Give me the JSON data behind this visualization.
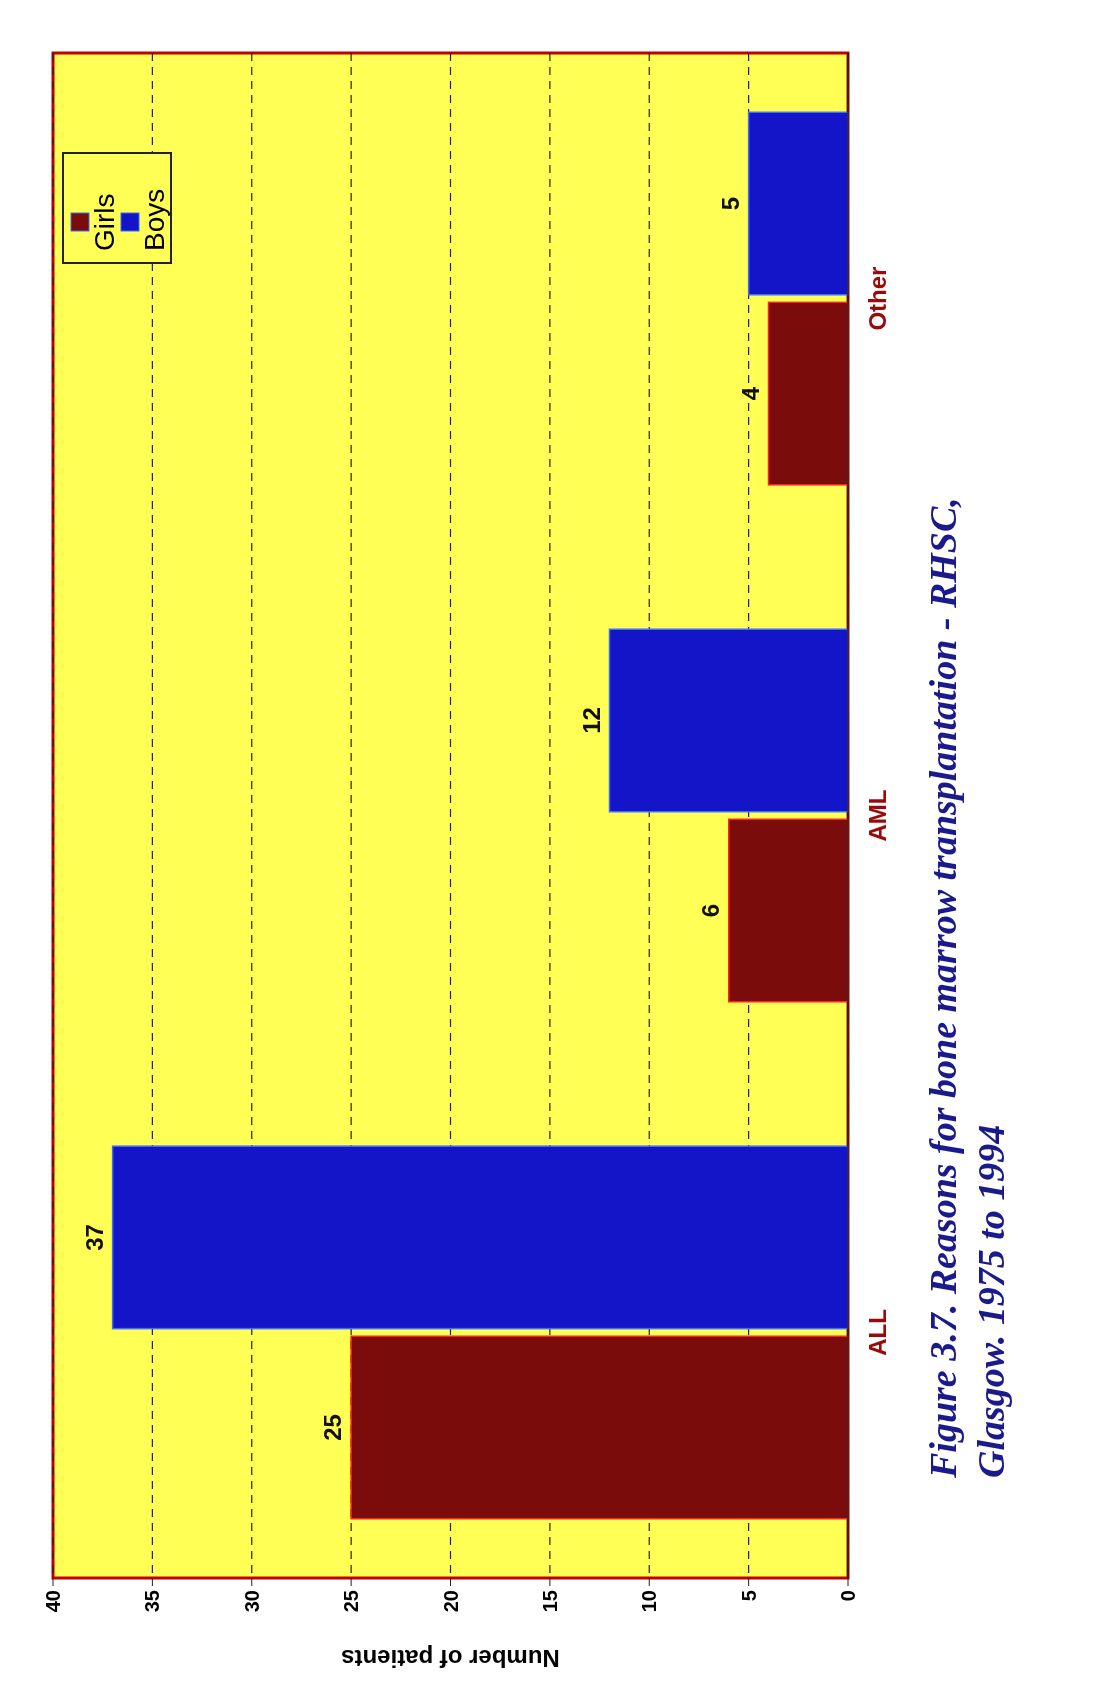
{
  "chart_data": {
    "type": "bar",
    "orientation": "horizontal",
    "title": "Figure 3.7. Reasons for bone marrow transplantation - RHSC, Glasgow. 1975 to 1994",
    "xlabel": "Number of patients",
    "categories": [
      "Other",
      "AML",
      "ALL"
    ],
    "series": [
      {
        "name": "Girls",
        "color": "#7a0c0c",
        "values": [
          4,
          6,
          25
        ]
      },
      {
        "name": "Boys",
        "color": "#1414c8",
        "values": [
          5,
          12,
          37
        ]
      }
    ],
    "xlim": [
      40,
      0
    ],
    "xticks": [
      40,
      35,
      30,
      25,
      20,
      15,
      10,
      5,
      0
    ],
    "grid": "x",
    "legend": "top left",
    "data_labels": true
  }
}
